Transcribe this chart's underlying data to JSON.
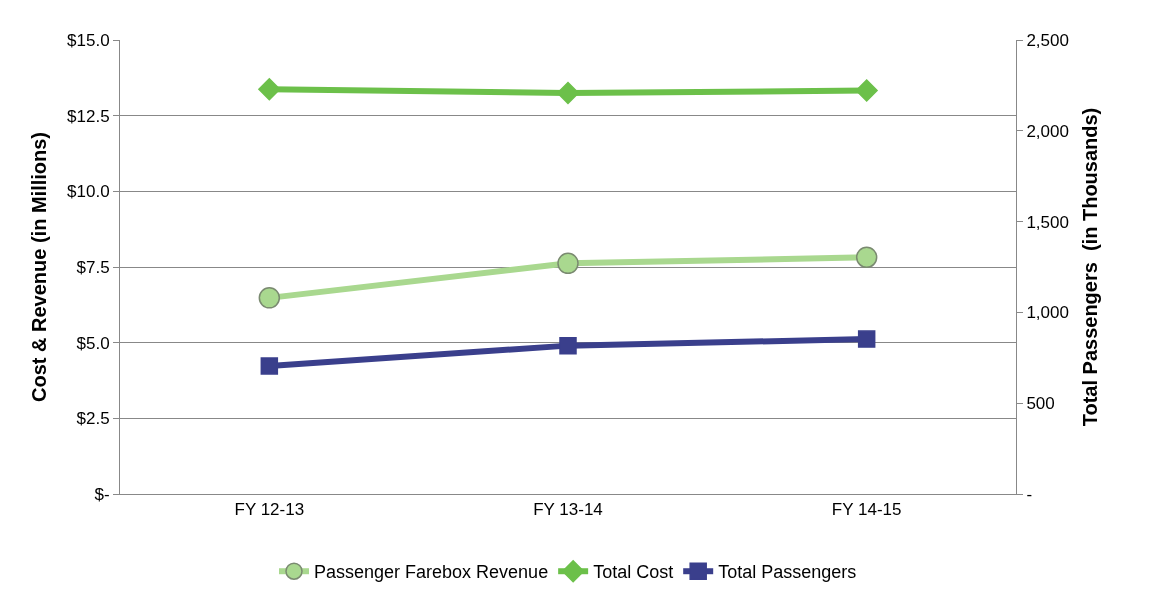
{
  "chart_data": {
    "type": "line",
    "ylabel": "Cost & Revenue (in Millions)",
    "y2label": "Total Passengers  (in Thousands)",
    "categories": [
      "FY 12-13",
      "FY 13-14",
      "FY 14-15"
    ],
    "series": [
      {
        "name": "Passenger Farebox Revenue",
        "color": "#a9d88f",
        "marker": "circle",
        "values": [
          6.48,
          7.62,
          7.82
        ]
      },
      {
        "name": "Total Cost",
        "color": "#6cc04a",
        "marker": "diamond",
        "values": [
          13.37,
          13.25,
          13.33
        ]
      },
      {
        "name": "Total Passengers",
        "color": "#3a3f8c",
        "marker": "square",
        "axis": "y2",
        "values": [
          705,
          817,
          853
        ]
      }
    ],
    "ylim": [
      0,
      15
    ],
    "yticks": [
      {
        "value": 0,
        "label": "$-"
      },
      {
        "value": 2.5,
        "label": "$2.5"
      },
      {
        "value": 5,
        "label": "$5.0"
      },
      {
        "value": 7.5,
        "label": "$7.5"
      },
      {
        "value": 10,
        "label": "$10.0"
      },
      {
        "value": 12.5,
        "label": "$12.5"
      },
      {
        "value": 15,
        "label": "$15.0"
      }
    ],
    "y2lim": [
      0,
      2500
    ],
    "y2ticks": [
      {
        "value": 0,
        "label": "-"
      },
      {
        "value": 500,
        "label": "500"
      },
      {
        "value": 1000,
        "label": "1,000"
      },
      {
        "value": 1500,
        "label": "1,500"
      },
      {
        "value": 2000,
        "label": "2,000"
      },
      {
        "value": 2500,
        "label": "2,500"
      }
    ],
    "grid": "y",
    "legend": "bottom",
    "line_style": "solid"
  }
}
